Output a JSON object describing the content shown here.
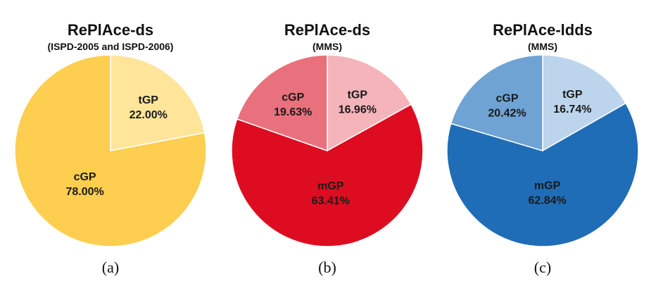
{
  "chart_data": [
    {
      "type": "pie",
      "title": "RePlAce-ds",
      "subtitle": "(ISPD-2005 and ISPD-2006)",
      "panel_label": "(a)",
      "slices": [
        {
          "name": "tGP",
          "value": 22.0,
          "label": "22.00%",
          "color": "#FEE59A"
        },
        {
          "name": "cGP",
          "value": 78.0,
          "label": "78.00%",
          "color": "#FECE50"
        }
      ]
    },
    {
      "type": "pie",
      "title": "RePlAce-ds",
      "subtitle": "(MMS)",
      "panel_label": "(b)",
      "slices": [
        {
          "name": "tGP",
          "value": 16.96,
          "label": "16.96%",
          "color": "#F4B4BA"
        },
        {
          "name": "mGP",
          "value": 63.41,
          "label": "63.41%",
          "color": "#DE0C21"
        },
        {
          "name": "cGP",
          "value": 19.63,
          "label": "19.63%",
          "color": "#E8717D"
        }
      ]
    },
    {
      "type": "pie",
      "title": "RePlAce-ldds",
      "subtitle": "(MMS)",
      "panel_label": "(c)",
      "slices": [
        {
          "name": "tGP",
          "value": 16.74,
          "label": "16.74%",
          "color": "#BDD5EC"
        },
        {
          "name": "mGP",
          "value": 62.84,
          "label": "62.84%",
          "color": "#1F6DB6"
        },
        {
          "name": "cGP",
          "value": 20.42,
          "label": "20.42%",
          "color": "#6FA3D4"
        }
      ]
    }
  ]
}
